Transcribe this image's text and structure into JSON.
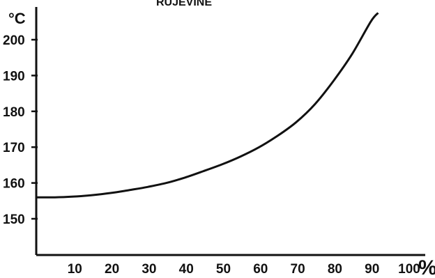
{
  "chart_data": {
    "type": "line",
    "title": "RUJEVINE",
    "xlabel": "%",
    "ylabel": "°C",
    "xlim": [
      0,
      105
    ],
    "ylim": [
      140,
      210
    ],
    "x_ticks": [
      10,
      20,
      30,
      40,
      50,
      60,
      70,
      80,
      90,
      100
    ],
    "y_ticks": [
      150,
      160,
      170,
      180,
      190,
      200
    ],
    "x_tick_labels": [
      "10",
      "20",
      "30",
      "40",
      "50",
      "60",
      "70",
      "80",
      "90",
      "100"
    ],
    "y_tick_labels": [
      "150",
      "160",
      "170",
      "180",
      "190",
      "200"
    ],
    "grid": false,
    "series": [
      {
        "x": [
          0,
          5,
          10,
          15,
          20,
          25,
          30,
          35,
          40,
          45,
          50,
          55,
          60,
          65,
          70,
          75,
          80,
          85,
          90,
          92
        ],
        "y": [
          156,
          156,
          156.2,
          156.6,
          157.2,
          158.0,
          158.9,
          160.0,
          161.5,
          163.3,
          165.2,
          167.4,
          170.0,
          173.2,
          177.0,
          182.0,
          188.5,
          196.0,
          205.0,
          207.5
        ]
      }
    ]
  }
}
